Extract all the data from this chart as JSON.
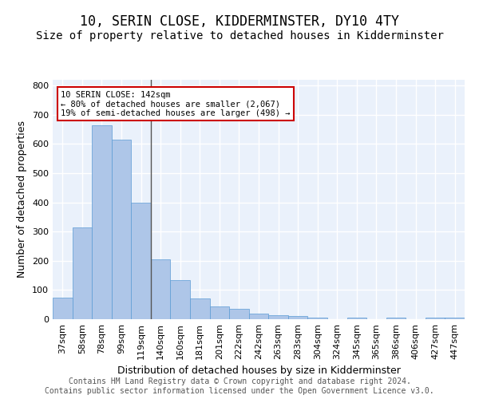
{
  "title": "10, SERIN CLOSE, KIDDERMINSTER, DY10 4TY",
  "subtitle": "Size of property relative to detached houses in Kidderminster",
  "xlabel": "Distribution of detached houses by size in Kidderminster",
  "ylabel": "Number of detached properties",
  "categories": [
    "37sqm",
    "58sqm",
    "78sqm",
    "99sqm",
    "119sqm",
    "140sqm",
    "160sqm",
    "181sqm",
    "201sqm",
    "222sqm",
    "242sqm",
    "263sqm",
    "283sqm",
    "304sqm",
    "324sqm",
    "345sqm",
    "365sqm",
    "386sqm",
    "406sqm",
    "427sqm",
    "447sqm"
  ],
  "values": [
    75,
    315,
    665,
    615,
    400,
    205,
    135,
    70,
    45,
    35,
    20,
    15,
    10,
    5,
    0,
    5,
    0,
    5,
    0,
    5,
    5
  ],
  "bar_color": "#aec6e8",
  "bar_edge_color": "#5b9bd5",
  "background_color": "#eaf1fb",
  "grid_color": "#ffffff",
  "vline_x": 4.5,
  "annotation_text_line1": "10 SERIN CLOSE: 142sqm",
  "annotation_text_line2": "← 80% of detached houses are smaller (2,067)",
  "annotation_text_line3": "19% of semi-detached houses are larger (498) →",
  "annotation_box_color": "#ffffff",
  "annotation_box_edge": "#cc0000",
  "vline_color": "#555555",
  "footer_line1": "Contains HM Land Registry data © Crown copyright and database right 2024.",
  "footer_line2": "Contains public sector information licensed under the Open Government Licence v3.0.",
  "ylim": [
    0,
    820
  ],
  "yticks": [
    0,
    100,
    200,
    300,
    400,
    500,
    600,
    700,
    800
  ],
  "title_fontsize": 12,
  "subtitle_fontsize": 10,
  "xlabel_fontsize": 9,
  "ylabel_fontsize": 9,
  "tick_fontsize": 8,
  "footer_fontsize": 7
}
